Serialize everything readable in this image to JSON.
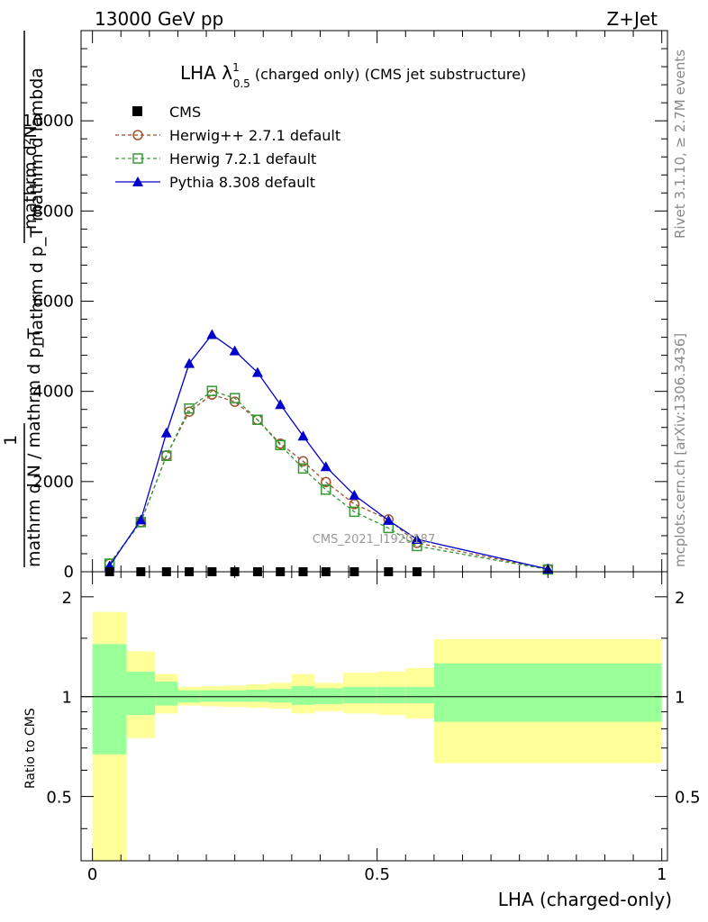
{
  "chart_data": {
    "type": "line",
    "header_left": "13000 GeV pp",
    "header_right": "Z+Jet",
    "title_main": "LHA λ",
    "title_sup": "1",
    "title_sub": "0.5",
    "title_rest": " (charged only) (CMS jet substructure)",
    "right_label_top": "Rivet 3.1.10, ≥ 2.7M events",
    "right_label_bottom": "mcplots.cern.ch [arXiv:1306.3436]",
    "watermark": "CMS_2021_I1920187",
    "ylabel_num_top": "mathrm d²N",
    "ylabel_den_top": "mathrm d p_T mathrm d lambda",
    "ylabel_frac_one": "1",
    "ylabel_den_bottom": "mathrm d N / mathrm d p_T",
    "ratio_ylabel": "Ratio to CMS",
    "xlabel": "LHA (charged-only)",
    "xlim": [
      -0.02,
      1.01
    ],
    "ylim": [
      0,
      12000
    ],
    "ratio_ylim": [
      0.32,
      2.38
    ],
    "x_ticks": [
      0,
      0.5,
      1
    ],
    "x_tick_labels": [
      "0",
      "0.5",
      "1"
    ],
    "y_ticks": [
      0,
      2000,
      4000,
      6000,
      8000,
      10000
    ],
    "y_tick_labels": [
      "0",
      "2000",
      "4000",
      "6000",
      "8000",
      "10000"
    ],
    "ratio_ticks": [
      0.5,
      1,
      2
    ],
    "ratio_tick_labels": [
      "0.5",
      "1",
      "2"
    ],
    "legend": [
      "CMS",
      "Herwig++ 2.7.1 default",
      "Herwig 7.2.1 default",
      "Pythia 8.308 default"
    ],
    "x": [
      0.03,
      0.085,
      0.13,
      0.17,
      0.21,
      0.25,
      0.29,
      0.33,
      0.37,
      0.41,
      0.46,
      0.52,
      0.57,
      0.8
    ],
    "cms_values": [
      0,
      0,
      0,
      0,
      0,
      0,
      0,
      0,
      0,
      0,
      0,
      0,
      0
    ],
    "cms_x": [
      0.03,
      0.085,
      0.13,
      0.17,
      0.21,
      0.25,
      0.29,
      0.33,
      0.37,
      0.41,
      0.46,
      0.52,
      0.57
    ],
    "series": [
      {
        "name": "Herwig++ 2.7.1 default",
        "color": "#a0522d",
        "marker": "circle",
        "values": [
          180,
          1100,
          2580,
          3550,
          3930,
          3770,
          3370,
          2840,
          2450,
          1990,
          1500,
          1160,
          640,
          60
        ]
      },
      {
        "name": "Herwig 7.2.1 default",
        "color": "#339933",
        "marker": "square",
        "values": [
          180,
          1100,
          2570,
          3620,
          4010,
          3850,
          3370,
          2810,
          2290,
          1820,
          1330,
          970,
          570,
          50
        ]
      },
      {
        "name": "Pythia 8.308 default",
        "color": "#0000cc",
        "marker": "triangle",
        "values": [
          130,
          1150,
          3080,
          4620,
          5260,
          4900,
          4420,
          3710,
          3010,
          2330,
          1700,
          1140,
          720,
          60
        ]
      }
    ],
    "ratio_band_edges": [
      0.0,
      0.06,
      0.11,
      0.15,
      0.19,
      0.23,
      0.27,
      0.31,
      0.35,
      0.39,
      0.44,
      0.5,
      0.55,
      0.6,
      1.0
    ],
    "ratio_inner_low": [
      0.67,
      0.88,
      0.94,
      0.96,
      0.965,
      0.965,
      0.965,
      0.96,
      0.945,
      0.95,
      0.955,
      0.955,
      0.955,
      0.84
    ],
    "ratio_inner_high": [
      1.44,
      1.19,
      1.11,
      1.045,
      1.045,
      1.045,
      1.05,
      1.055,
      1.075,
      1.06,
      1.07,
      1.07,
      1.07,
      1.26
    ],
    "ratio_outer_low": [
      0.32,
      0.75,
      0.89,
      0.94,
      0.935,
      0.93,
      0.925,
      0.92,
      0.89,
      0.905,
      0.89,
      0.88,
      0.86,
      0.63
    ],
    "ratio_outer_high": [
      1.8,
      1.37,
      1.17,
      1.07,
      1.075,
      1.08,
      1.09,
      1.1,
      1.17,
      1.1,
      1.18,
      1.19,
      1.22,
      1.49
    ],
    "ratio_line": 1
  }
}
